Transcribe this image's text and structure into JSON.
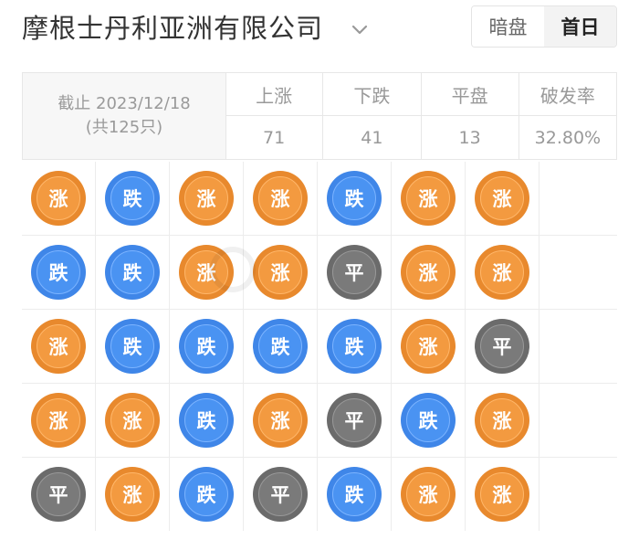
{
  "header": {
    "title": "摩根士丹利亚洲有限公司",
    "chevron_icon": "chevron-down-icon",
    "tabs": [
      {
        "label": "暗盘",
        "active": false
      },
      {
        "label": "首日",
        "active": true
      }
    ]
  },
  "summary": {
    "date_line": "截止 2023/12/18",
    "count_line": "(共125只)",
    "columns": [
      {
        "header": "上涨",
        "value": "71"
      },
      {
        "header": "下跌",
        "value": "41"
      },
      {
        "header": "平盘",
        "value": "13"
      },
      {
        "header": "破发率",
        "value": "32.80%"
      }
    ]
  },
  "grid": {
    "rows": [
      [
        {
          "type": "up",
          "label": "涨"
        },
        {
          "type": "down",
          "label": "跌"
        },
        {
          "type": "up",
          "label": "涨"
        },
        {
          "type": "up",
          "label": "涨"
        },
        {
          "type": "down",
          "label": "跌"
        },
        {
          "type": "up",
          "label": "涨"
        },
        {
          "type": "up",
          "label": "涨"
        }
      ],
      [
        {
          "type": "down",
          "label": "跌"
        },
        {
          "type": "down",
          "label": "跌"
        },
        {
          "type": "up",
          "label": "涨"
        },
        {
          "type": "up",
          "label": "涨"
        },
        {
          "type": "flat",
          "label": "平"
        },
        {
          "type": "up",
          "label": "涨"
        },
        {
          "type": "up",
          "label": "涨"
        }
      ],
      [
        {
          "type": "up",
          "label": "涨"
        },
        {
          "type": "down",
          "label": "跌"
        },
        {
          "type": "down",
          "label": "跌"
        },
        {
          "type": "down",
          "label": "跌"
        },
        {
          "type": "down",
          "label": "跌"
        },
        {
          "type": "up",
          "label": "涨"
        },
        {
          "type": "flat",
          "label": "平"
        }
      ],
      [
        {
          "type": "up",
          "label": "涨"
        },
        {
          "type": "up",
          "label": "涨"
        },
        {
          "type": "down",
          "label": "跌"
        },
        {
          "type": "up",
          "label": "涨"
        },
        {
          "type": "flat",
          "label": "平"
        },
        {
          "type": "down",
          "label": "跌"
        },
        {
          "type": "up",
          "label": "涨"
        }
      ],
      [
        {
          "type": "flat",
          "label": "平"
        },
        {
          "type": "up",
          "label": "涨"
        },
        {
          "type": "down",
          "label": "跌"
        },
        {
          "type": "flat",
          "label": "平"
        },
        {
          "type": "down",
          "label": "跌"
        },
        {
          "type": "up",
          "label": "涨"
        },
        {
          "type": "up",
          "label": "涨"
        }
      ]
    ]
  },
  "colors": {
    "up": "#f39a40",
    "down": "#4a93f2",
    "flat": "#7a7a7a"
  }
}
